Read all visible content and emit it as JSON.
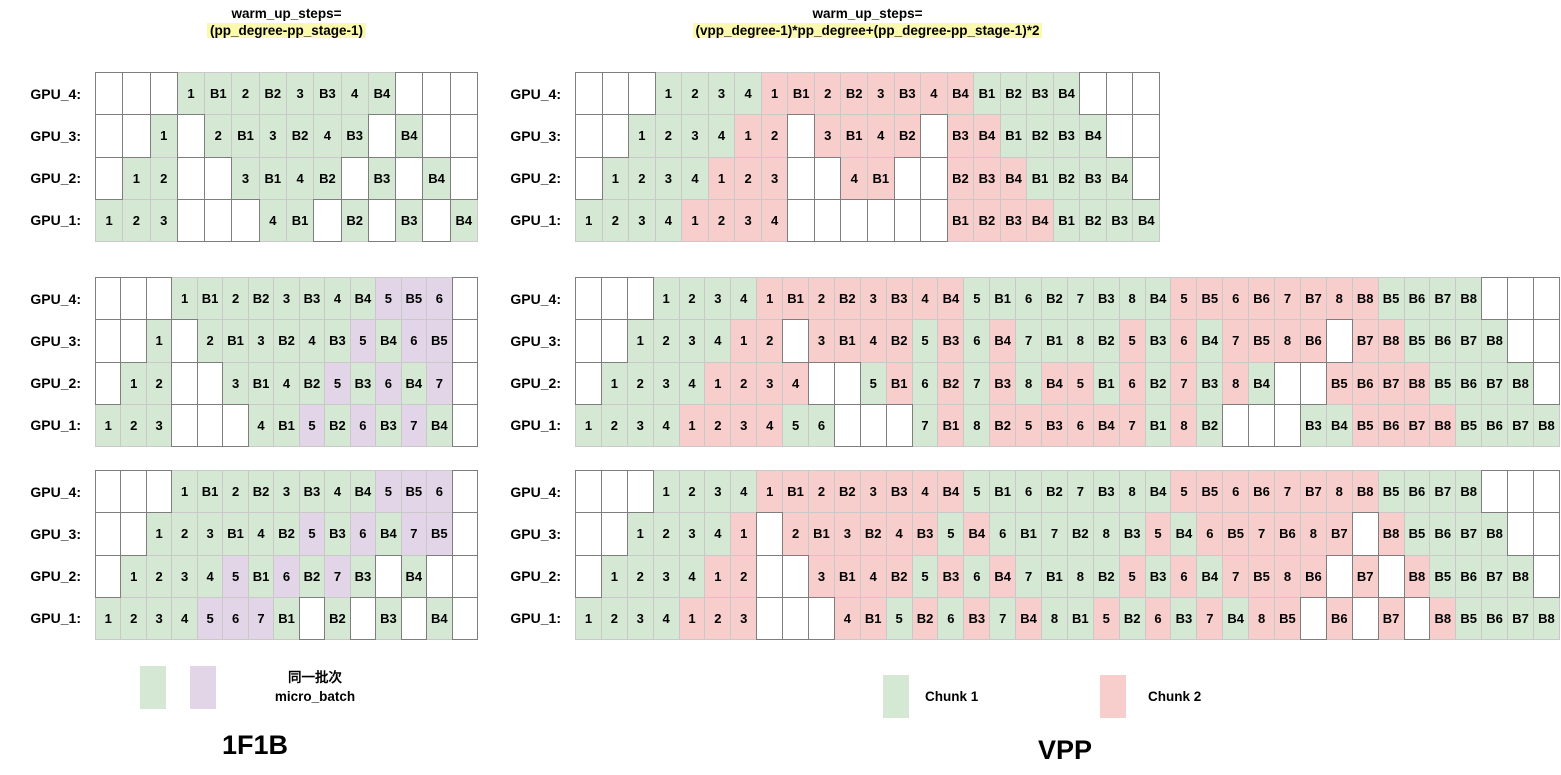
{
  "titles": {
    "left": {
      "line1": "warm_up_steps=",
      "line2": "(pp_degree-pp_stage-1)"
    },
    "right": {
      "line1": "warm_up_steps=",
      "line2": "(vpp_degree-1)*pp_degree+(pp_degree-pp_stage-1)*2"
    }
  },
  "colors": {
    "chunk1_green": "#d5e8d4",
    "chunk2_pink": "#f8cecc",
    "next_batch_purple": "#e1d5e7",
    "highlight_yellow": "#fbf9ae"
  },
  "row_labels": [
    "GPU_4:",
    "GPU_3:",
    "GPU_2:",
    "GPU_1:"
  ],
  "grids": [
    {
      "name": "1f1b-schedule-4-microbatch",
      "rows": [
        [
          "-",
          "-",
          "-",
          "1g",
          "B1g",
          "2g",
          "B2g",
          "3g",
          "B3g",
          "4g",
          "B4g",
          "-",
          "-",
          "-"
        ],
        [
          "-",
          "-",
          "1g",
          "-",
          "2g",
          "B1g",
          "3g",
          "B2g",
          "4g",
          "B3g",
          "-",
          "B4g",
          "-",
          "-"
        ],
        [
          "-",
          "1g",
          "2g",
          "-",
          "-",
          "3g",
          "B1g",
          "4g",
          "B2g",
          "-",
          "B3g",
          "-",
          "B4g",
          "-"
        ],
        [
          "1g",
          "2g",
          "3g",
          "-",
          "-",
          "-",
          "4g",
          "B1g",
          "-",
          "B2g",
          "-",
          "B3g",
          "-",
          "B4g"
        ]
      ]
    },
    {
      "name": "1f1b-schedule-7-microbatch-interleaved-warmup",
      "rows": [
        [
          "-",
          "-",
          "-",
          "1g",
          "B1g",
          "2g",
          "B2g",
          "3g",
          "B3g",
          "4g",
          "B4g",
          "5p",
          "B5p",
          "6p",
          "-"
        ],
        [
          "-",
          "-",
          "1g",
          "-",
          "2g",
          "B1g",
          "3g",
          "B2g",
          "4g",
          "B3g",
          "5p",
          "B4g",
          "6p",
          "B5p",
          "-"
        ],
        [
          "-",
          "1g",
          "2g",
          "-",
          "-",
          "3g",
          "B1g",
          "4g",
          "B2g",
          "5p",
          "B3g",
          "6p",
          "B4g",
          "7p",
          "-"
        ],
        [
          "1g",
          "2g",
          "3g",
          "-",
          "-",
          "-",
          "4g",
          "B1g",
          "5p",
          "B2g",
          "6p",
          "B3g",
          "7p",
          "B4g",
          "-"
        ]
      ]
    },
    {
      "name": "1f1b-schedule-7-microbatch-full-warmup",
      "rows": [
        [
          "-",
          "-",
          "-",
          "1g",
          "B1g",
          "2g",
          "B2g",
          "3g",
          "B3g",
          "4g",
          "B4g",
          "5p",
          "B5p",
          "6p",
          "-"
        ],
        [
          "-",
          "-",
          "1g",
          "2g",
          "3g",
          "B1g",
          "4g",
          "B2g",
          "5p",
          "B3g",
          "6p",
          "B4g",
          "7p",
          "B5p",
          "-"
        ],
        [
          "-",
          "1g",
          "2g",
          "3g",
          "4g",
          "5p",
          "B1g",
          "6p",
          "B2g",
          "7p",
          "B3g",
          "-",
          "B4g",
          "-",
          "-"
        ],
        [
          "1g",
          "2g",
          "3g",
          "4g",
          "5p",
          "6p",
          "7p",
          "B1g",
          "-",
          "B2g",
          "-",
          "B3g",
          "-",
          "B4g",
          "-"
        ]
      ]
    },
    {
      "name": "vpp-schedule-4-microbatch",
      "rows": [
        [
          "-",
          "-",
          "-",
          "1g",
          "2g",
          "3g",
          "4g",
          "1r",
          "B1r",
          "2r",
          "B2r",
          "3r",
          "B3r",
          "4r",
          "B4r",
          "B1g",
          "B2g",
          "B3g",
          "B4g",
          "-",
          "-",
          "-"
        ],
        [
          "-",
          "-",
          "1g",
          "2g",
          "3g",
          "4g",
          "1r",
          "2r",
          "-",
          "3r",
          "B1r",
          "4r",
          "B2r",
          "-",
          "B3r",
          "B4r",
          "B1g",
          "B2g",
          "B3g",
          "B4g",
          "-",
          "-"
        ],
        [
          "-",
          "1g",
          "2g",
          "3g",
          "4g",
          "1r",
          "2r",
          "3r",
          "-",
          "-",
          "4r",
          "B1r",
          "-",
          "-",
          "B2r",
          "B3r",
          "B4r",
          "B1g",
          "B2g",
          "B3g",
          "B4g",
          "-"
        ],
        [
          "1g",
          "2g",
          "3g",
          "4g",
          "1r",
          "2r",
          "3r",
          "4r",
          "-",
          "-",
          "-",
          "-",
          "-",
          "-",
          "B1r",
          "B2r",
          "B3r",
          "B4r",
          "B1g",
          "B2g",
          "B3g",
          "B4g"
        ]
      ]
    },
    {
      "name": "vpp-schedule-8-microbatch-a",
      "rows": [
        [
          "-",
          "-",
          "-",
          "1g",
          "2g",
          "3g",
          "4g",
          "1r",
          "B1r",
          "2r",
          "B2r",
          "3r",
          "B3r",
          "4r",
          "B4r",
          "5g",
          "B1g",
          "6g",
          "B2g",
          "7g",
          "B3g",
          "8g",
          "B4g",
          "5r",
          "B5r",
          "6r",
          "B6r",
          "7r",
          "B7r",
          "8r",
          "B8r",
          "B5g",
          "B6g",
          "B7g",
          "B8g",
          "-",
          "-",
          "-"
        ],
        [
          "-",
          "-",
          "1g",
          "2g",
          "3g",
          "4g",
          "1r",
          "2r",
          "-",
          "3r",
          "B1r",
          "4r",
          "B2r",
          "5g",
          "B3r",
          "6g",
          "B4r",
          "7g",
          "B1g",
          "8g",
          "B2g",
          "5r",
          "B3g",
          "6r",
          "B4g",
          "7r",
          "B5r",
          "8r",
          "B6r",
          "-",
          "B7r",
          "B8r",
          "B5g",
          "B6g",
          "B7g",
          "B8g",
          "-",
          "-"
        ],
        [
          "-",
          "1g",
          "2g",
          "3g",
          "4g",
          "1r",
          "2r",
          "3r",
          "4r",
          "-",
          "-",
          "5g",
          "B1r",
          "6g",
          "B2r",
          "7g",
          "B3r",
          "8g",
          "B4r",
          "5r",
          "B1g",
          "6r",
          "B2g",
          "7r",
          "B3g",
          "8r",
          "B4g",
          "-",
          "-",
          "B5r",
          "B6r",
          "B7r",
          "B8r",
          "B5g",
          "B6g",
          "B7g",
          "B8g",
          "-"
        ],
        [
          "1g",
          "2g",
          "3g",
          "4g",
          "1r",
          "2r",
          "3r",
          "4r",
          "5g",
          "6g",
          "-",
          "-",
          "-",
          "7g",
          "B1r",
          "8g",
          "B2r",
          "5r",
          "B3r",
          "6r",
          "B4r",
          "7r",
          "B1g",
          "8r",
          "B2g",
          "-",
          "-",
          "-",
          "B3g",
          "B4g",
          "B5r",
          "B6r",
          "B7r",
          "B8r",
          "B5g",
          "B6g",
          "B7g",
          "B8g"
        ]
      ]
    },
    {
      "name": "vpp-schedule-8-microbatch-b",
      "rows": [
        [
          "-",
          "-",
          "-",
          "1g",
          "2g",
          "3g",
          "4g",
          "1r",
          "B1r",
          "2r",
          "B2r",
          "3r",
          "B3r",
          "4r",
          "B4r",
          "5g",
          "B1g",
          "6g",
          "B2g",
          "7g",
          "B3g",
          "8g",
          "B4g",
          "5r",
          "B5r",
          "6r",
          "B6r",
          "7r",
          "B7r",
          "8r",
          "B8r",
          "B5g",
          "B6g",
          "B7g",
          "B8g",
          "-",
          "-",
          "-"
        ],
        [
          "-",
          "-",
          "1g",
          "2g",
          "3g",
          "4g",
          "1r",
          "-",
          "2r",
          "B1r",
          "3r",
          "B2r",
          "4r",
          "B3r",
          "5g",
          "B4r",
          "6g",
          "B1g",
          "7g",
          "B2g",
          "8g",
          "B3g",
          "5r",
          "B4g",
          "6r",
          "B5r",
          "7r",
          "B6r",
          "8r",
          "B7r",
          "-",
          "B8r",
          "B5g",
          "B6g",
          "B7g",
          "B8g",
          "-",
          "-"
        ],
        [
          "-",
          "1g",
          "2g",
          "3g",
          "4g",
          "1r",
          "2r",
          "-",
          "-",
          "3r",
          "B1r",
          "4r",
          "B2r",
          "5g",
          "B3r",
          "6g",
          "B4r",
          "7g",
          "B1g",
          "8g",
          "B2g",
          "5r",
          "B3g",
          "6r",
          "B4g",
          "7r",
          "B5r",
          "8r",
          "B6r",
          "-",
          "B7r",
          "-",
          "B8r",
          "B5g",
          "B6g",
          "B7g",
          "B8g",
          "-"
        ],
        [
          "1g",
          "2g",
          "3g",
          "4g",
          "1r",
          "2r",
          "3r",
          "-",
          "-",
          "-",
          "4r",
          "B1r",
          "5g",
          "B2r",
          "6g",
          "B3r",
          "7g",
          "B4r",
          "8g",
          "B1g",
          "5r",
          "B2g",
          "6r",
          "B3g",
          "7r",
          "B4g",
          "8r",
          "B5r",
          "-",
          "B6r",
          "-",
          "B7r",
          "-",
          "B8r",
          "B5g",
          "B6g",
          "B7g",
          "B8g"
        ]
      ]
    }
  ],
  "legend_left": {
    "text_line1": "同一批次",
    "text_line2": "micro_batch",
    "caption": "1F1B"
  },
  "legend_right": {
    "item1_label": "Chunk 1",
    "item2_label": "Chunk 2",
    "caption": "VPP"
  }
}
